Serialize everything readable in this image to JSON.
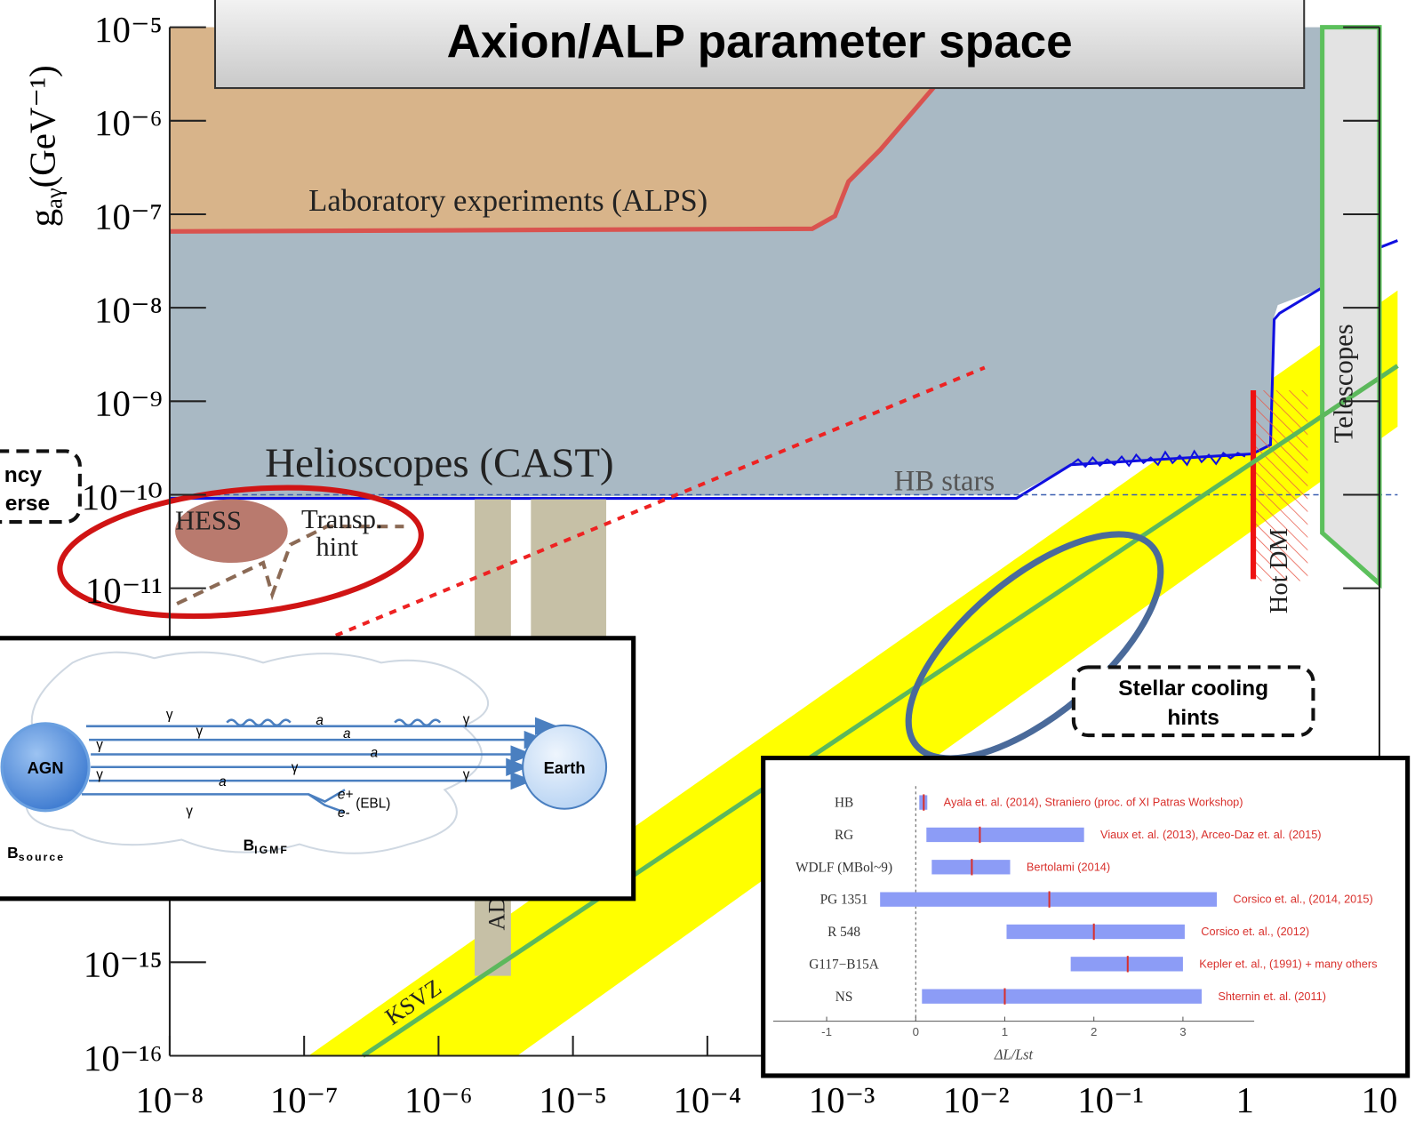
{
  "title": "Axion/ALP parameter space",
  "callouts": {
    "left": [
      "ncy",
      "erse"
    ],
    "stellar": [
      "Stellar cooling",
      "hints"
    ]
  },
  "diagram": {
    "source": "AGN",
    "target": "Earth",
    "photon": "γ",
    "alp": "a",
    "pair": [
      "e+",
      "e-"
    ],
    "ebl": "(EBL)",
    "b_source": [
      "B",
      "source"
    ],
    "b_igmf": [
      "B",
      "IGMF"
    ]
  },
  "chart_data": [
    {
      "type": "exclusion",
      "log_x": true,
      "log_y": true,
      "xlim": [
        1e-08,
        10
      ],
      "ylim": [
        1e-16,
        1e-05
      ],
      "xticks": [
        {
          "value": 1e-08,
          "label": "10⁻⁸"
        },
        {
          "value": 1e-07,
          "label": "10⁻⁷"
        },
        {
          "value": 1e-06,
          "label": "10⁻⁶"
        },
        {
          "value": 1e-05,
          "label": "10⁻⁵"
        },
        {
          "value": 0.0001,
          "label": "10⁻⁴"
        },
        {
          "value": 0.001,
          "label": "10⁻³"
        },
        {
          "value": 0.01,
          "label": "10⁻²"
        },
        {
          "value": 0.1,
          "label": "10⁻¹"
        },
        1,
        10
      ],
      "yticks": [
        {
          "value": 1e-05,
          "label": "10⁻⁵"
        },
        {
          "value": 1e-06,
          "label": "10⁻⁶"
        },
        {
          "value": 1e-07,
          "label": "10⁻⁷"
        },
        {
          "value": 1e-08,
          "label": "10⁻⁸"
        },
        {
          "value": 1e-09,
          "label": "10⁻⁹"
        },
        {
          "value": 1e-10,
          "label": "10⁻¹⁰"
        },
        {
          "value": 1e-11,
          "label": "10⁻¹¹"
        },
        {
          "value": 1e-15,
          "label": "10⁻¹⁵"
        },
        {
          "value": 1e-16,
          "label": "10⁻¹⁶"
        }
      ],
      "ylabel": {
        "symbol": "g",
        "subscript": "aγ",
        "unit": "(GeV⁻¹)"
      },
      "labels": {
        "lab": "Laboratory experiments (ALPS)",
        "cast": "Helioscopes (CAST)",
        "hb": "HB stars",
        "hess": "HESS",
        "transp": [
          "Transp.",
          "hint"
        ],
        "telescopes": "Telescopes",
        "hotdm": "Hot DM",
        "ksvz": "KSVZ",
        "admx": "AD"
      }
    },
    {
      "type": "interval",
      "categories": [
        "HB",
        "RG",
        "WDLF (MBol~9)",
        "PG 1351",
        "R 548",
        "G117−B15A",
        "NS"
      ],
      "low": [
        0.04,
        0.12,
        0.18,
        -0.4,
        1.02,
        1.74,
        0.07
      ],
      "high": [
        0.13,
        1.89,
        1.06,
        3.38,
        3.02,
        3.0,
        3.21
      ],
      "center": [
        0.09,
        0.72,
        0.63,
        1.5,
        2.0,
        2.38,
        1.0
      ],
      "color": "#8c9cf6",
      "center_color": "#d9302c",
      "xlim": [
        -1.6,
        3.8
      ],
      "xticks": [
        -1,
        0,
        1,
        2,
        3
      ],
      "xlabel": "ΔL/Lst",
      "annotations": [
        "Ayala et. al. (2014), Straniero (proc. of XI Patras Workshop)",
        "Viaux et. al. (2013), Arceo-Daz et. al. (2015)",
        "Bertolami (2014)",
        "Corsico et. al., (2014, 2015)",
        "Corsico et. al., (2012)",
        "Kepler et. al., (1991) + many others",
        "Shternin et. al. (2011)"
      ]
    }
  ]
}
